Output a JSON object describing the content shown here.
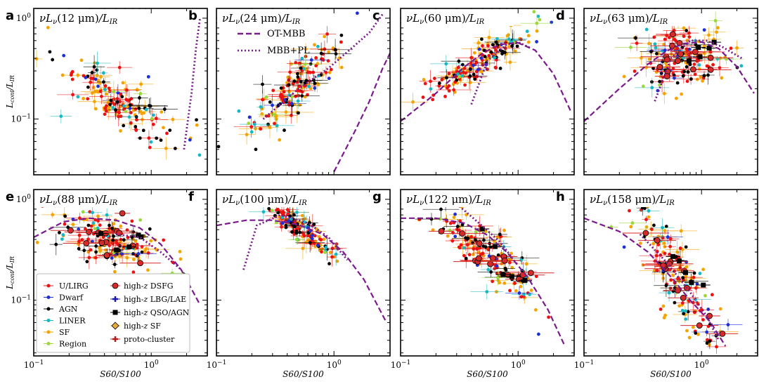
{
  "chart_data": {
    "type": "scatter",
    "xscale": "log",
    "yscale": "log",
    "xlim": [
      0.1,
      3.0
    ],
    "ylim": [
      0.028,
      1.25
    ],
    "xlabel": "S60/S100",
    "ylabel": "Lcont/LIR",
    "x_ticks": [
      {
        "v": 0.1,
        "base": "10",
        "exp": "−1"
      },
      {
        "v": 1.0,
        "base": "10",
        "exp": "0"
      }
    ],
    "y_ticks": [
      {
        "v": 0.1,
        "base": "10",
        "exp": "−1"
      },
      {
        "v": 1.0,
        "base": "10",
        "exp": "0"
      }
    ],
    "colors": {
      "ulirg": "#ee1111",
      "dwarf": "#1f2fd6",
      "agn": "#000000",
      "liner": "#17b8c4",
      "sf": "#f5a300",
      "region": "#9ad83a",
      "hz_dsfg": "#d42a2a",
      "hz_lbg": "#1a1aaa",
      "hz_qso": "#000000",
      "hz_sf": "#e8a83a",
      "proto": "#b71c1c",
      "otmbb": "#7b1a8c",
      "mbbpl": "#7b1a8c"
    },
    "curve_legend": [
      {
        "name": "OT-MBB",
        "style": "dashed"
      },
      {
        "name": "MBB+PL",
        "style": "dotted"
      }
    ],
    "legend_col1": [
      "U/LIRG",
      "Dwarf",
      "AGN",
      "LINER",
      "SF",
      "Region"
    ],
    "legend_col2": [
      {
        "main": "high-",
        "sub": "z",
        "rest": " DSFG"
      },
      {
        "main": "high-",
        "sub": "z",
        "rest": " LBG/LAE"
      },
      {
        "main": "high-",
        "sub": "z",
        "rest": " QSO/AGN"
      },
      {
        "main": "high-",
        "sub": "z",
        "rest": " SF"
      },
      {
        "main": "proto-cluster",
        "sub": "",
        "rest": ""
      }
    ],
    "panels": [
      {
        "letter": "a",
        "wav": "12",
        "otmbb": [],
        "mbbpl": [
          [
            1.9,
            0.05
          ],
          [
            2.2,
            0.18
          ],
          [
            2.4,
            0.5
          ],
          [
            2.6,
            1.0
          ]
        ],
        "center": [
          0.5,
          0.15
        ],
        "spread": [
          0.28,
          0.22
        ],
        "tilt": -0.6
      },
      {
        "letter": "b",
        "wav": "24",
        "otmbb": [
          [
            1.0,
            0.03
          ],
          [
            1.5,
            0.075
          ],
          [
            2.0,
            0.15
          ],
          [
            2.6,
            0.32
          ],
          [
            3.0,
            0.45
          ]
        ],
        "mbbpl": [
          [
            0.25,
            0.1
          ],
          [
            0.5,
            0.2
          ],
          [
            0.9,
            0.32
          ],
          [
            1.4,
            0.5
          ],
          [
            2.0,
            0.72
          ],
          [
            2.6,
            1.1
          ]
        ],
        "center": [
          0.45,
          0.2
        ],
        "spread": [
          0.2,
          0.24
        ],
        "tilt": 1.1
      },
      {
        "letter": "c",
        "wav": "60",
        "otmbb": [
          [
            0.1,
            0.095
          ],
          [
            0.2,
            0.18
          ],
          [
            0.35,
            0.33
          ],
          [
            0.5,
            0.45
          ],
          [
            0.7,
            0.55
          ],
          [
            1.0,
            0.57
          ],
          [
            1.4,
            0.48
          ],
          [
            2.0,
            0.28
          ],
          [
            2.8,
            0.12
          ]
        ],
        "mbbpl": [
          [
            0.4,
            0.14
          ],
          [
            0.55,
            0.38
          ],
          [
            0.8,
            0.55
          ],
          [
            1.0,
            0.58
          ],
          [
            1.3,
            0.5
          ]
        ],
        "center": [
          0.48,
          0.38
        ],
        "spread": [
          0.22,
          0.13
        ],
        "tilt": 0.7
      },
      {
        "letter": "d",
        "wav": "63",
        "otmbb": [
          [
            0.1,
            0.095
          ],
          [
            0.2,
            0.2
          ],
          [
            0.35,
            0.35
          ],
          [
            0.5,
            0.47
          ],
          [
            0.7,
            0.56
          ],
          [
            1.0,
            0.58
          ],
          [
            1.4,
            0.5
          ],
          [
            2.0,
            0.33
          ],
          [
            2.8,
            0.18
          ]
        ],
        "mbbpl": [
          [
            0.4,
            0.15
          ],
          [
            0.55,
            0.4
          ],
          [
            0.8,
            0.6
          ],
          [
            1.1,
            0.6
          ],
          [
            1.5,
            0.52
          ],
          [
            2.2,
            0.4
          ]
        ],
        "center": [
          0.65,
          0.4
        ],
        "spread": [
          0.18,
          0.28
        ],
        "tilt": 0.0
      },
      {
        "letter": "e",
        "wav": "88",
        "otmbb": [
          [
            0.1,
            0.42
          ],
          [
            0.18,
            0.6
          ],
          [
            0.3,
            0.65
          ],
          [
            0.5,
            0.62
          ],
          [
            0.8,
            0.52
          ],
          [
            1.2,
            0.36
          ],
          [
            1.8,
            0.2
          ],
          [
            2.6,
            0.09
          ]
        ],
        "mbbpl": [
          [
            0.5,
            0.45
          ],
          [
            0.8,
            0.42
          ],
          [
            1.2,
            0.3
          ],
          [
            1.8,
            0.2
          ]
        ],
        "center": [
          0.45,
          0.4
        ],
        "spread": [
          0.22,
          0.2
        ],
        "tilt": -0.3
      },
      {
        "letter": "f",
        "wav": "100",
        "otmbb": [
          [
            0.1,
            0.55
          ],
          [
            0.18,
            0.62
          ],
          [
            0.3,
            0.62
          ],
          [
            0.5,
            0.56
          ],
          [
            0.8,
            0.45
          ],
          [
            1.2,
            0.3
          ],
          [
            1.8,
            0.16
          ],
          [
            2.8,
            0.06
          ]
        ],
        "mbbpl": [
          [
            0.17,
            0.2
          ],
          [
            0.22,
            0.55
          ],
          [
            0.35,
            0.7
          ],
          [
            0.6,
            0.58
          ],
          [
            0.9,
            0.42
          ],
          [
            1.3,
            0.25
          ]
        ],
        "center": [
          0.48,
          0.55
        ],
        "spread": [
          0.18,
          0.12
        ],
        "tilt": -0.9
      },
      {
        "letter": "g",
        "wav": "122",
        "otmbb": [
          [
            0.1,
            0.65
          ],
          [
            0.2,
            0.65
          ],
          [
            0.35,
            0.58
          ],
          [
            0.55,
            0.44
          ],
          [
            0.8,
            0.3
          ],
          [
            1.2,
            0.17
          ],
          [
            1.8,
            0.08
          ],
          [
            2.5,
            0.035
          ]
        ],
        "mbbpl": [
          [
            0.3,
            0.9
          ],
          [
            0.45,
            0.6
          ],
          [
            0.7,
            0.38
          ],
          [
            1.0,
            0.22
          ]
        ],
        "center": [
          0.55,
          0.28
        ],
        "spread": [
          0.22,
          0.22
        ],
        "tilt": -0.9
      },
      {
        "letter": "h",
        "wav": "158",
        "otmbb": [
          [
            0.1,
            0.65
          ],
          [
            0.2,
            0.48
          ],
          [
            0.35,
            0.3
          ],
          [
            0.55,
            0.17
          ],
          [
            0.8,
            0.1
          ],
          [
            1.2,
            0.06
          ],
          [
            1.6,
            0.035
          ]
        ],
        "mbbpl": [
          [
            0.3,
            0.45
          ],
          [
            0.5,
            0.24
          ],
          [
            0.8,
            0.12
          ],
          [
            1.1,
            0.07
          ],
          [
            1.4,
            0.04
          ]
        ],
        "center": [
          0.6,
          0.17
        ],
        "spread": [
          0.18,
          0.35
        ],
        "tilt": -1.6
      }
    ]
  }
}
